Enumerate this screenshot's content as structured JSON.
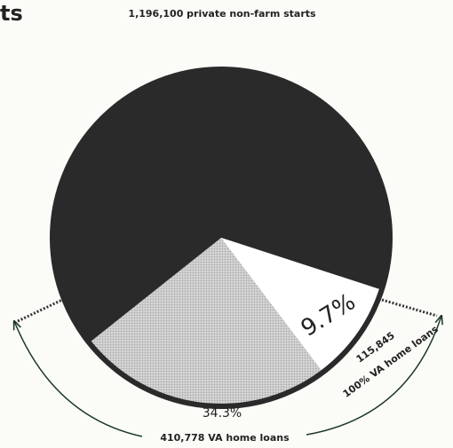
{
  "title": "ts",
  "chart_data": {
    "type": "pie",
    "subtitle": "1,196,100 private non-farm starts",
    "values": [
      34.3,
      9.7
    ],
    "value_labels": [
      "34.3%",
      "9.7%"
    ],
    "labels": [
      [
        "410,778 VA home loans"
      ],
      [
        "115,845",
        "100% VA home loans"
      ]
    ],
    "colors": [
      "#d2d2d2",
      "#ffffff"
    ],
    "remainder_color": "#2a2a2a"
  }
}
